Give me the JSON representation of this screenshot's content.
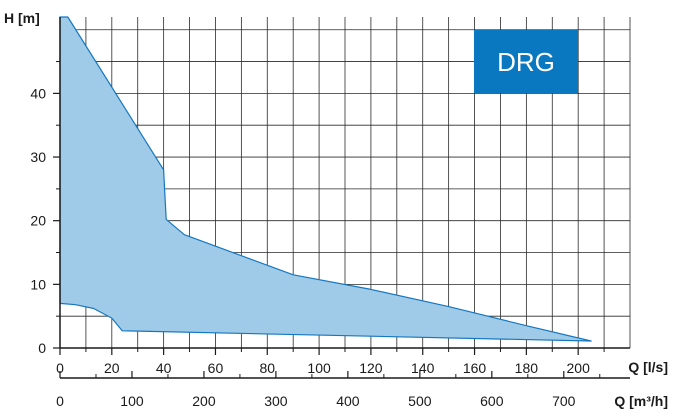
{
  "chart_data": {
    "type": "area",
    "x_axis_label": "Q [l/s]",
    "secondary_x_axis_label": "Q [m³/h]",
    "y_axis_label": "H [m]",
    "badge": {
      "text": "DRG",
      "color": "#0a78c0"
    },
    "xlim": [
      0,
      220
    ],
    "ylim": [
      0,
      52
    ],
    "grid": true,
    "fill_color": "#9fcbe8",
    "line_color": "#1577c0",
    "x_ticks": [
      0,
      20,
      40,
      60,
      80,
      100,
      120,
      140,
      160,
      180,
      200
    ],
    "y_ticks": [
      0,
      10,
      20,
      30,
      40
    ],
    "secondary_x_ticks": [
      0,
      100,
      200,
      300,
      400,
      500,
      600,
      700
    ],
    "upper_boundary": [
      {
        "x": 0,
        "y": 52
      },
      {
        "x": 3,
        "y": 52
      },
      {
        "x": 40,
        "y": 28
      },
      {
        "x": 40.5,
        "y": 24
      },
      {
        "x": 41,
        "y": 20.2
      },
      {
        "x": 48,
        "y": 17.8
      },
      {
        "x": 90,
        "y": 11.5
      },
      {
        "x": 120,
        "y": 9.2
      },
      {
        "x": 150,
        "y": 6.5
      },
      {
        "x": 180,
        "y": 3.5
      },
      {
        "x": 205,
        "y": 1.1
      }
    ],
    "lower_boundary": [
      {
        "x": 205,
        "y": 1.1
      },
      {
        "x": 24,
        "y": 2.7
      },
      {
        "x": 20,
        "y": 4.7
      },
      {
        "x": 13,
        "y": 6.2
      },
      {
        "x": 6,
        "y": 6.8
      },
      {
        "x": 0,
        "y": 7
      }
    ]
  }
}
